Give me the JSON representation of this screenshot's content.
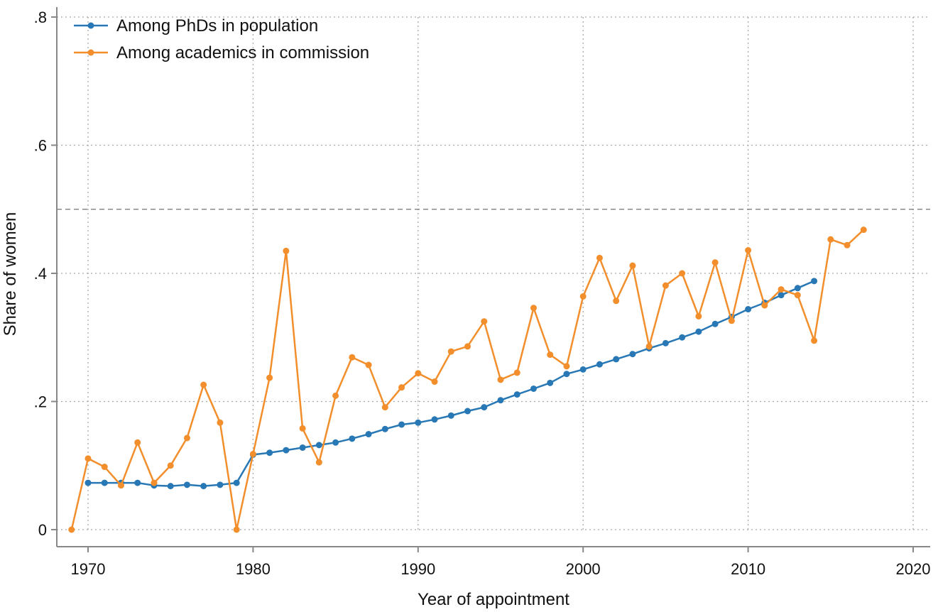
{
  "chart_data": {
    "type": "line",
    "xlabel": "Year of appointment",
    "ylabel": "Share of women",
    "xlim": [
      1968,
      2020
    ],
    "ylim": [
      0,
      0.8
    ],
    "x_ticks": [
      1970,
      1980,
      1990,
      2000,
      2010,
      2020
    ],
    "x_tick_labels": [
      "1970",
      "1980",
      "1990",
      "2000",
      "2010",
      "2020"
    ],
    "y_ticks": [
      0,
      0.2,
      0.4,
      0.6,
      0.8
    ],
    "y_tick_labels": [
      "0",
      ".2",
      ".4",
      ".6",
      ".8"
    ],
    "grid": true,
    "reference_line": {
      "y": 0.5,
      "style": "dashed"
    },
    "legend_position": "top-left",
    "series": [
      {
        "name": "Among PhDs in population",
        "color": "#2878b5",
        "x": [
          1970,
          1971,
          1972,
          1973,
          1974,
          1975,
          1976,
          1977,
          1978,
          1979,
          1980,
          1981,
          1982,
          1983,
          1984,
          1985,
          1986,
          1987,
          1988,
          1989,
          1990,
          1991,
          1992,
          1993,
          1994,
          1995,
          1996,
          1997,
          1998,
          1999,
          2000,
          2001,
          2002,
          2003,
          2004,
          2005,
          2006,
          2007,
          2008,
          2009,
          2010,
          2011,
          2012,
          2013,
          2014
        ],
        "y": [
          0.073,
          0.073,
          0.073,
          0.073,
          0.069,
          0.068,
          0.07,
          0.068,
          0.07,
          0.073,
          0.117,
          0.12,
          0.124,
          0.128,
          0.132,
          0.136,
          0.142,
          0.149,
          0.157,
          0.164,
          0.167,
          0.172,
          0.178,
          0.185,
          0.191,
          0.202,
          0.211,
          0.22,
          0.229,
          0.243,
          0.25,
          0.258,
          0.266,
          0.274,
          0.283,
          0.291,
          0.3,
          0.309,
          0.321,
          0.332,
          0.344,
          0.354,
          0.366,
          0.377,
          0.388
        ]
      },
      {
        "name": "Among academics in commission",
        "color": "#f28e2b",
        "x": [
          1969,
          1970,
          1971,
          1972,
          1973,
          1974,
          1975,
          1976,
          1977,
          1978,
          1979,
          1980,
          1981,
          1982,
          1983,
          1984,
          1985,
          1986,
          1987,
          1988,
          1989,
          1990,
          1991,
          1992,
          1993,
          1994,
          1995,
          1996,
          1997,
          1998,
          1999,
          2000,
          2001,
          2002,
          2003,
          2004,
          2005,
          2006,
          2007,
          2008,
          2009,
          2010,
          2011,
          2012,
          2013,
          2014,
          2015,
          2016,
          2017
        ],
        "y": [
          0.0,
          0.111,
          0.098,
          0.069,
          0.136,
          0.073,
          0.1,
          0.143,
          0.226,
          0.167,
          0.0,
          0.118,
          0.237,
          0.435,
          0.158,
          0.105,
          0.209,
          0.269,
          0.257,
          0.191,
          0.222,
          0.244,
          0.231,
          0.278,
          0.286,
          0.325,
          0.234,
          0.245,
          0.346,
          0.273,
          0.255,
          0.364,
          0.424,
          0.357,
          0.412,
          0.286,
          0.381,
          0.4,
          0.333,
          0.417,
          0.326,
          0.436,
          0.35,
          0.375,
          0.366,
          0.295,
          0.453,
          0.444,
          0.468
        ]
      }
    ]
  }
}
